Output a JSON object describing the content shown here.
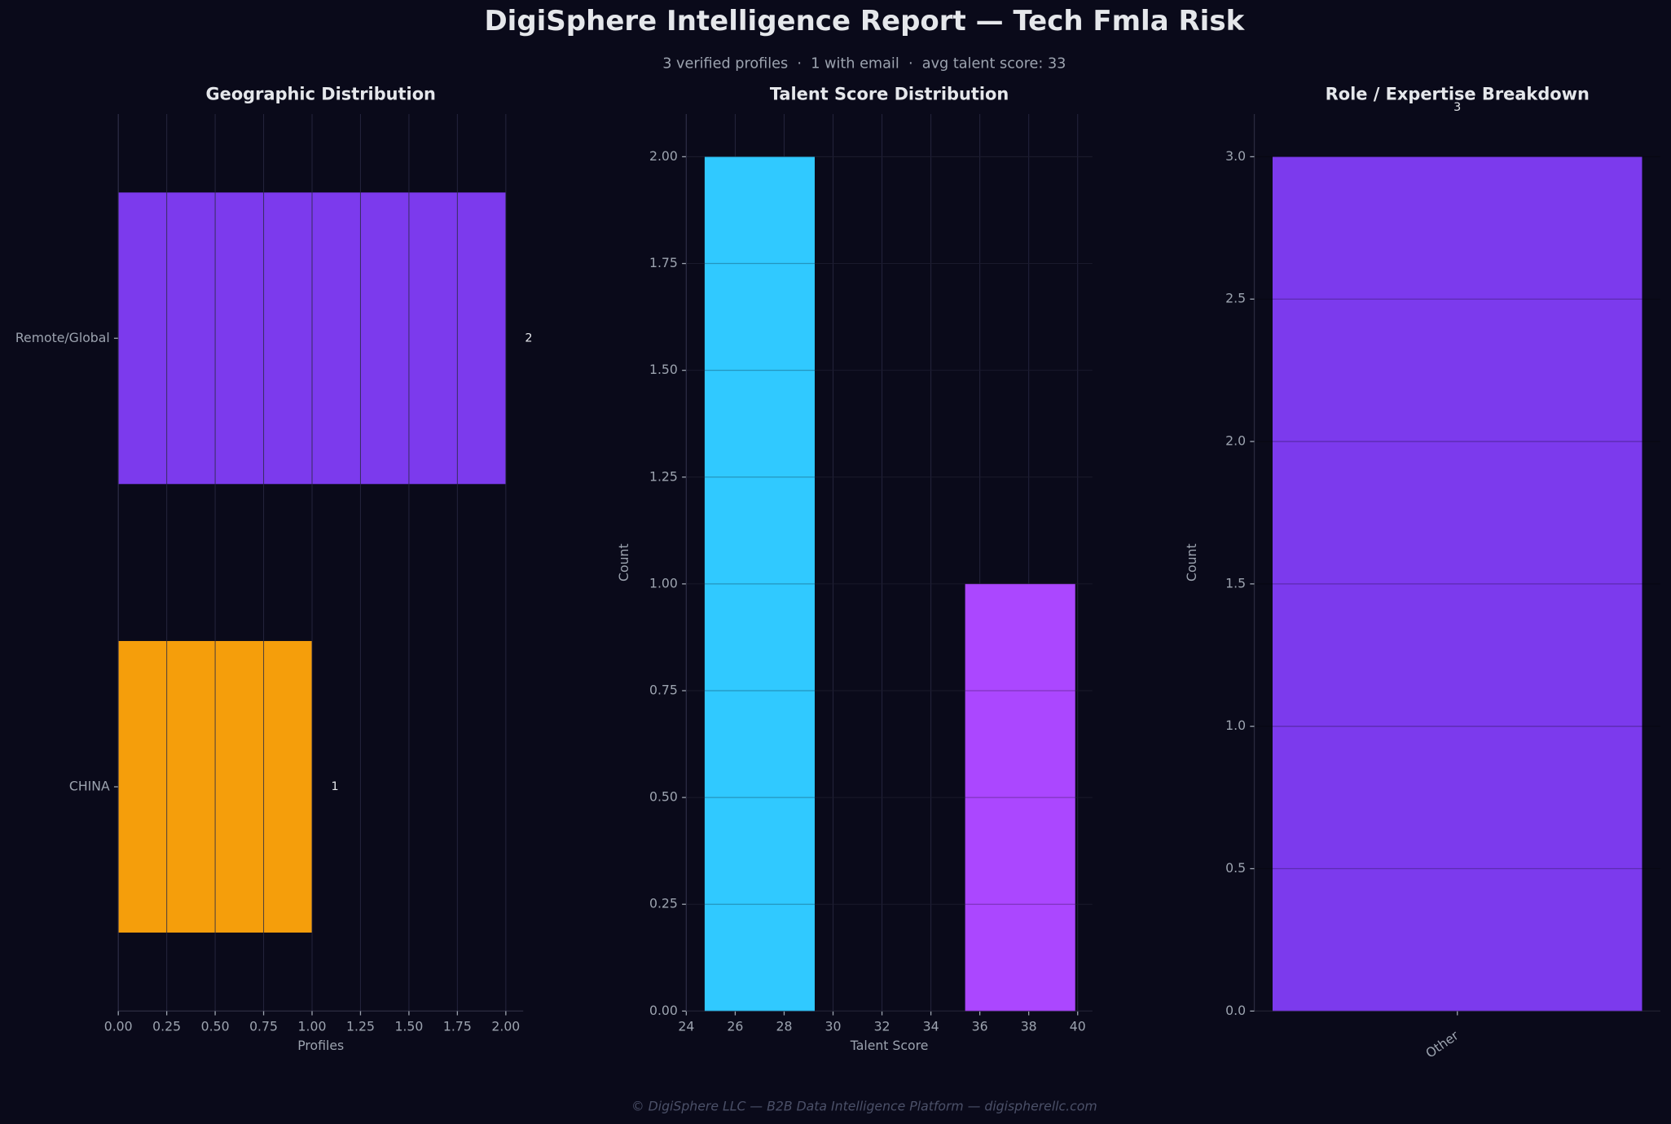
{
  "title": "DigiSphere Intelligence Report — Tech Fmla Risk",
  "subtitle": "3 verified profiles  ·  1 with email  ·  avg talent score: 33",
  "footer": "© DigiSphere LLC — B2B Data Intelligence Platform — digispherellc.com",
  "chart_data": [
    {
      "type": "barh",
      "title": "Geographic Distribution",
      "xlabel": "Profiles",
      "categories": [
        "Remote/Global",
        "CHINA"
      ],
      "values": [
        2,
        1
      ],
      "colors": [
        "#7c3aed",
        "#f59e0b"
      ],
      "xlim": [
        0,
        2.09
      ],
      "xticks": [
        {
          "value": 0,
          "label": "0.00"
        },
        {
          "value": 0.25,
          "label": "0.25"
        },
        {
          "value": 0.5,
          "label": "0.50"
        },
        {
          "value": 0.75,
          "label": "0.75"
        },
        {
          "value": 1,
          "label": "1.00"
        },
        {
          "value": 1.25,
          "label": "1.25"
        },
        {
          "value": 1.5,
          "label": "1.50"
        },
        {
          "value": 1.75,
          "label": "1.75"
        },
        {
          "value": 2,
          "label": "2.00"
        }
      ],
      "grid": true
    },
    {
      "type": "histogram",
      "title": "Talent Score Distribution",
      "xlabel": "Talent Score",
      "ylabel": "Count",
      "bins": [
        24.75,
        29.25,
        35.4,
        39.9
      ],
      "values": [
        2,
        0,
        1
      ],
      "colors": [
        "#30c9ff",
        "#30c9ff",
        "#ab47ff"
      ],
      "xlim": [
        24,
        40.6
      ],
      "xticks": [
        24,
        26,
        28,
        30,
        32,
        34,
        36,
        38,
        40
      ],
      "ylim": [
        0,
        2.1
      ],
      "yticks": [
        {
          "value": 0,
          "label": "0.00"
        },
        {
          "value": 0.25,
          "label": "0.25"
        },
        {
          "value": 0.5,
          "label": "0.50"
        },
        {
          "value": 0.75,
          "label": "0.75"
        },
        {
          "value": 1,
          "label": "1.00"
        },
        {
          "value": 1.25,
          "label": "1.25"
        },
        {
          "value": 1.5,
          "label": "1.50"
        },
        {
          "value": 1.75,
          "label": "1.75"
        },
        {
          "value": 2,
          "label": "2.00"
        }
      ],
      "grid": true
    },
    {
      "type": "bar",
      "title": "Role / Expertise Breakdown",
      "ylabel": "Count",
      "categories": [
        "Other"
      ],
      "values": [
        3
      ],
      "colors": [
        "#7c3aed"
      ],
      "ylim": [
        0,
        3.15
      ],
      "yticks": [
        {
          "value": 0,
          "label": "0.0"
        },
        {
          "value": 0.5,
          "label": "0.5"
        },
        {
          "value": 1,
          "label": "1.0"
        },
        {
          "value": 1.5,
          "label": "1.5"
        },
        {
          "value": 2,
          "label": "2.0"
        },
        {
          "value": 2.5,
          "label": "2.5"
        },
        {
          "value": 3,
          "label": "3.0"
        }
      ],
      "grid": true
    }
  ]
}
